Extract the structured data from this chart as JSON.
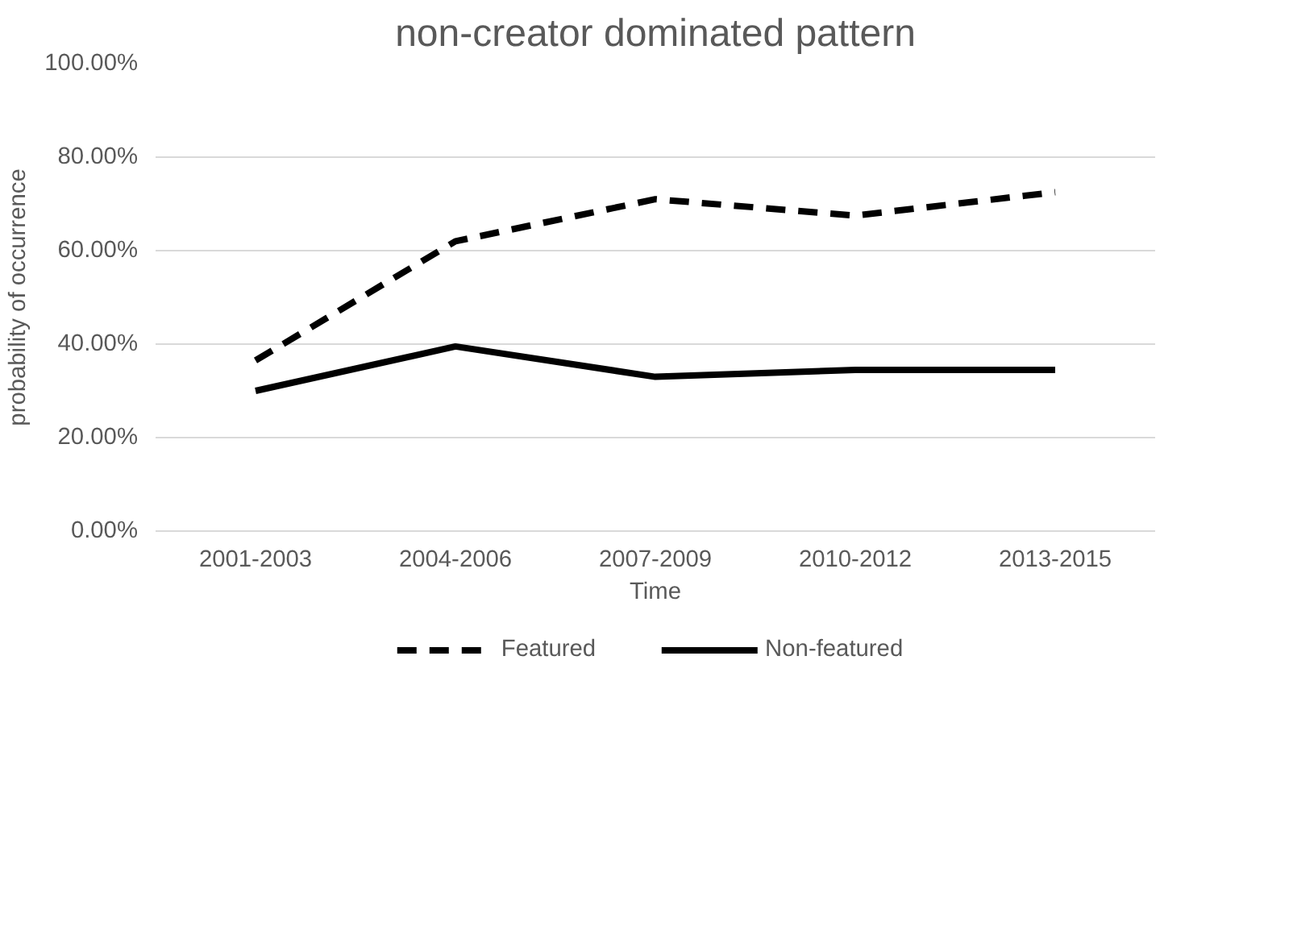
{
  "chart_data": {
    "type": "line",
    "title": "non-creator dominated pattern",
    "xlabel": "Time",
    "ylabel": "probability of occurrence",
    "categories": [
      "2001-2003",
      "2004-2006",
      "2007-2009",
      "2010-2012",
      "2013-2015"
    ],
    "series": [
      {
        "name": "Featured",
        "color": "#000000",
        "line_style": "dashed",
        "values": [
          36.5,
          62,
          71,
          67.5,
          72.5
        ]
      },
      {
        "name": "Non-featured",
        "color": "#000000",
        "line_style": "solid",
        "values": [
          30,
          39.5,
          33,
          34.5,
          34.5
        ]
      }
    ],
    "ylim": [
      0,
      100
    ],
    "yticks": [
      {
        "value": 0,
        "label": "0.00%"
      },
      {
        "value": 20,
        "label": "20.00%"
      },
      {
        "value": 40,
        "label": "40.00%"
      },
      {
        "value": 60,
        "label": "60.00%"
      },
      {
        "value": 80,
        "label": "80.00%"
      },
      {
        "value": 100,
        "label": "100.00%"
      }
    ],
    "grid": "y",
    "legend": "bottom"
  }
}
